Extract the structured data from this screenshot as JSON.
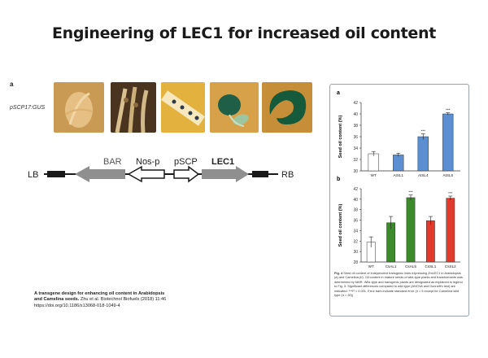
{
  "slide": {
    "title": "Engineering of LEC1 for increased oil content",
    "panel_label": "a",
    "gus_label": "pSCP17:GUS"
  },
  "construct": {
    "lb": "LB",
    "rb": "RB",
    "bar": "BAR",
    "nos_p": "Nos-p",
    "pscp": "pSCP",
    "lec1": "LEC1"
  },
  "caption": {
    "line1": "A transgene design for enhancing oil content in Arabidopsis",
    "line2_bold": "and Camelina seeds.",
    "line2_cite": " Zhu et al. Biotechnol Biofuels (2018) 11:46",
    "line3": "https://doi.org/10.1186/s13068-018-1049-4"
  },
  "colors": {
    "wt": "#ffffff",
    "atsl": "#5b8fd1",
    "csal": "#3d8a2c",
    "cssl": "#e23b2e",
    "arrow_gray": "#8f8f8f",
    "construct_dark": "#1a1a1a"
  },
  "chart_data": [
    {
      "type": "bar",
      "panel": "a",
      "categories": [
        "WT",
        "AtSL1",
        "AtSL4",
        "AtSL5"
      ],
      "values": [
        33.0,
        32.8,
        36.0,
        40.0
      ],
      "errors": [
        0.4,
        0.3,
        0.5,
        0.2
      ],
      "significance": [
        "",
        "",
        "***",
        "***"
      ],
      "ylabel": "Seed oil content (%)",
      "ylim": [
        30,
        42
      ],
      "yticks": [
        "30",
        "32",
        "34",
        "36",
        "38",
        "40",
        "42"
      ]
    },
    {
      "type": "bar",
      "panel": "b",
      "categories": [
        "WT",
        "CsAL1",
        "CsAL5",
        "CsSL1",
        "CsSL2"
      ],
      "values": [
        31.8,
        35.5,
        40.3,
        35.9,
        40.2
      ],
      "errors": [
        1.0,
        1.2,
        0.5,
        0.8,
        0.4
      ],
      "significance": [
        "",
        "",
        "***",
        "",
        "***"
      ],
      "ylabel": "Seed oil content (%)",
      "ylim": [
        28,
        42
      ],
      "yticks": [
        "28",
        "30",
        "32",
        "34",
        "36",
        "38",
        "40",
        "42"
      ]
    }
  ],
  "fig_caption": {
    "label": "Fig. 4",
    "text": " Seed oil content of independent transgenic lines expressing ZmLEC1 in Arabidopsis (a) and Camelina (b). Oil content in mature seeds of wild-type plants and transformants was determined by NMR. Wild-type and transgenic plants are designated as explained in legend to Fig. 3. Significant differences compared to wild type (ANOVA and Dunnett's test) are indicated: ***P < 0.001. Error bars indicate standard error (n = 6 except for Camelina wild type (n = 30))"
  }
}
